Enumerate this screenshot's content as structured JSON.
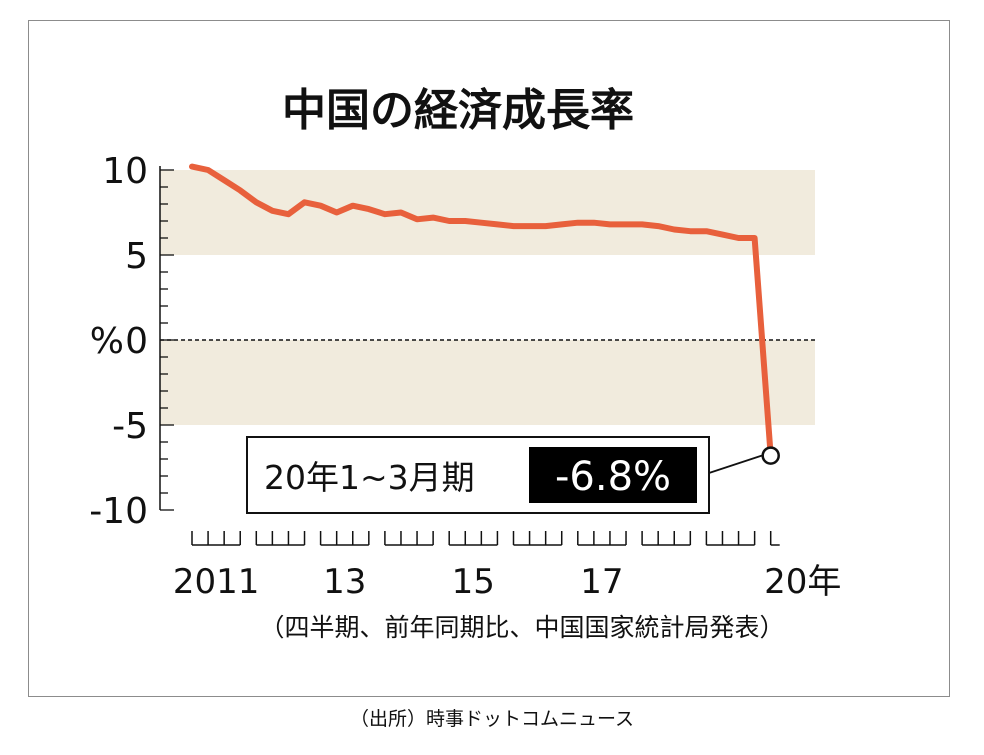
{
  "chart_data": {
    "type": "line",
    "title": "中国の経済成長率",
    "unit_label": "%",
    "y_ticks": [
      {
        "value": 10,
        "label": "10"
      },
      {
        "value": 5,
        "label": "5"
      },
      {
        "value": 0,
        "label": "0"
      },
      {
        "value": -5,
        "label": "-5"
      },
      {
        "value": -10,
        "label": "-10"
      }
    ],
    "ylim": [
      -10,
      10
    ],
    "x_labels": [
      {
        "year": 2011,
        "label": "2011"
      },
      {
        "year": 2013,
        "label": "13"
      },
      {
        "year": 2015,
        "label": "15"
      },
      {
        "year": 2017,
        "label": "17"
      },
      {
        "year": 2020,
        "label": "20年"
      }
    ],
    "note": "（四半期、前年同期比、中国国家統計局発表）",
    "series": [
      {
        "name": "",
        "x": [
          "2011Q1",
          "2011Q2",
          "2011Q3",
          "2011Q4",
          "2012Q1",
          "2012Q2",
          "2012Q3",
          "2012Q4",
          "2013Q1",
          "2013Q2",
          "2013Q3",
          "2013Q4",
          "2014Q1",
          "2014Q2",
          "2014Q3",
          "2014Q4",
          "2015Q1",
          "2015Q2",
          "2015Q3",
          "2015Q4",
          "2016Q1",
          "2016Q2",
          "2016Q3",
          "2016Q4",
          "2017Q1",
          "2017Q2",
          "2017Q3",
          "2017Q4",
          "2018Q1",
          "2018Q2",
          "2018Q3",
          "2018Q4",
          "2019Q1",
          "2019Q2",
          "2019Q3",
          "2019Q4",
          "2020Q1"
        ],
        "values": [
          10.2,
          10.0,
          9.4,
          8.8,
          8.1,
          7.6,
          7.4,
          8.1,
          7.9,
          7.5,
          7.9,
          7.7,
          7.4,
          7.5,
          7.1,
          7.2,
          7.0,
          7.0,
          6.9,
          6.8,
          6.7,
          6.7,
          6.7,
          6.8,
          6.9,
          6.9,
          6.8,
          6.8,
          6.8,
          6.7,
          6.5,
          6.4,
          6.4,
          6.2,
          6.0,
          6.0,
          -6.8
        ]
      }
    ],
    "bands": [
      [
        5,
        10
      ],
      [
        -5,
        0
      ]
    ],
    "reference_line": 0,
    "annotation": {
      "period": "20年1~3月期",
      "value": "-6.8%"
    },
    "colors": {
      "line": "#e8603c",
      "band": "#f1ebdd",
      "frame": "#8c8c8c",
      "text": "#111111"
    }
  },
  "source_credit": "（出所）時事ドットコムニュース"
}
